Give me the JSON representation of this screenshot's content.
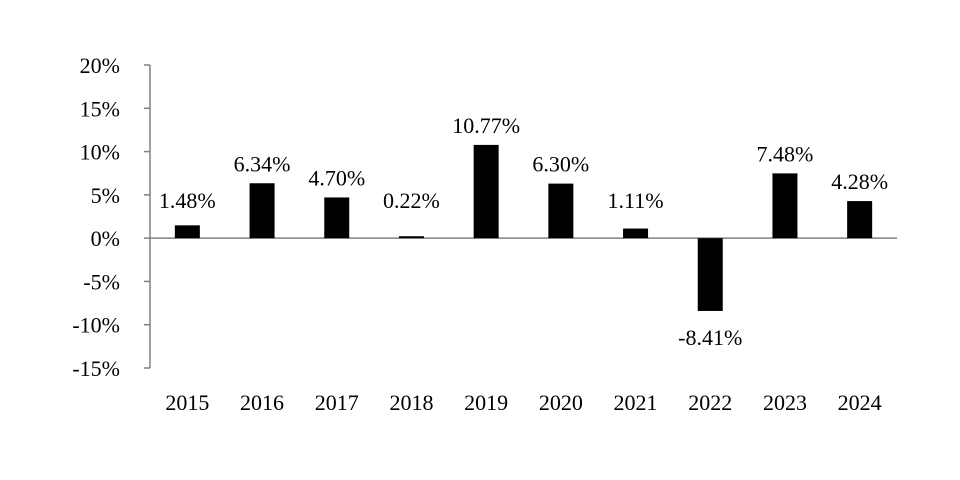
{
  "chart_data": {
    "type": "bar",
    "categories": [
      "2015",
      "2016",
      "2017",
      "2018",
      "2019",
      "2020",
      "2021",
      "2022",
      "2023",
      "2024"
    ],
    "values": [
      1.48,
      6.34,
      4.7,
      0.22,
      10.77,
      6.3,
      1.11,
      -8.41,
      7.48,
      4.28
    ],
    "data_labels": [
      "1.48%",
      "6.34%",
      "4.70%",
      "0.22%",
      "10.77%",
      "6.30%",
      "1.11%",
      "-8.41%",
      "7.48%",
      "4.28%"
    ],
    "y_ticks": [
      20,
      15,
      10,
      5,
      0,
      -5,
      -10,
      -15
    ],
    "y_tick_labels": [
      "20%",
      "15%",
      "10%",
      "5%",
      "0%",
      "-5%",
      "-10%",
      "-15%"
    ],
    "ylim": [
      -15,
      20
    ],
    "title": "",
    "xlabel": "",
    "ylabel": "",
    "grid": false,
    "legend": "none",
    "bar_color": "#000000",
    "axis_color": "#808080"
  }
}
